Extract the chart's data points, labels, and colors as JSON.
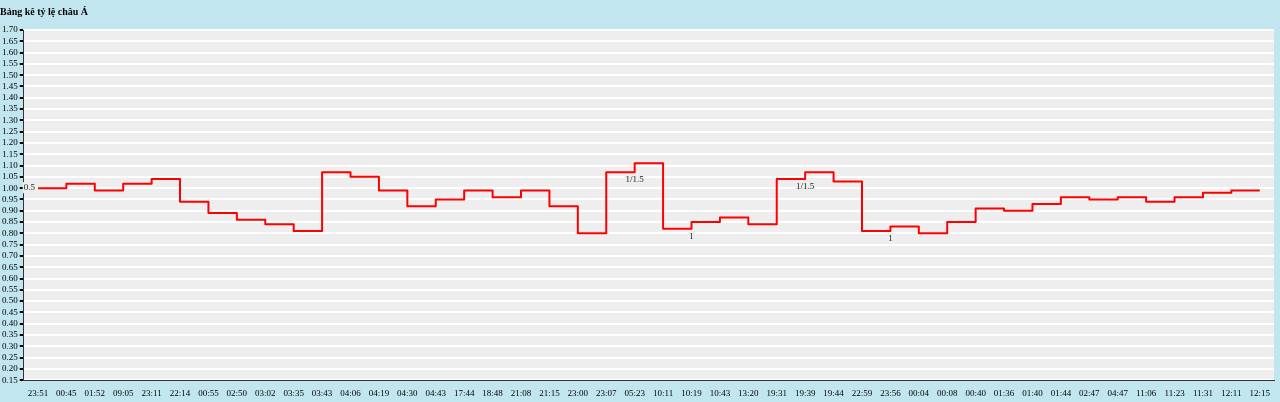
{
  "chart_data": {
    "type": "step",
    "title": "Bảng kê tỷ lệ châu Á",
    "categories": [
      "23:51",
      "00:45",
      "01:52",
      "09:05",
      "23:11",
      "22:14",
      "00:55",
      "02:50",
      "03:02",
      "03:35",
      "03:43",
      "04:06",
      "04:19",
      "04:30",
      "04:43",
      "17:44",
      "18:48",
      "21:08",
      "21:15",
      "23:00",
      "23:07",
      "05:23",
      "10:11",
      "10:19",
      "10:43",
      "13:20",
      "19:31",
      "19:39",
      "19:44",
      "22:59",
      "23:56",
      "00:04",
      "00:08",
      "00:40",
      "01:36",
      "01:40",
      "01:44",
      "02:47",
      "04:47",
      "11:06",
      "11:23",
      "11:31",
      "12:11",
      "12:15"
    ],
    "series": [
      {
        "color": "#ff0000",
        "values": [
          1.0,
          1.02,
          0.99,
          1.02,
          1.04,
          0.94,
          0.89,
          0.86,
          0.84,
          0.81,
          1.07,
          1.05,
          0.99,
          0.92,
          0.95,
          0.99,
          0.96,
          0.99,
          0.92,
          0.8,
          1.07,
          1.11,
          0.82,
          0.85,
          0.87,
          0.84,
          1.04,
          1.07,
          1.03,
          0.81,
          0.83,
          0.8,
          0.85,
          0.91,
          0.9,
          0.93,
          0.96,
          0.95,
          0.96,
          0.94,
          0.96,
          0.98,
          0.99,
          0.99
        ]
      }
    ],
    "ylim": [
      0.15,
      1.7
    ],
    "yticks": [
      0.15,
      {
        "value": 0.2,
        "label": "0.20"
      },
      0.25,
      {
        "value": 0.3,
        "label": "0.30"
      },
      0.35,
      {
        "value": 0.4,
        "label": "0.40"
      },
      0.45,
      {
        "value": 0.5,
        "label": "0.50"
      },
      0.55,
      {
        "value": 0.6,
        "label": "0.60"
      },
      0.65,
      {
        "value": 0.7,
        "label": "0.70"
      },
      0.75,
      {
        "value": 0.8,
        "label": "0.80"
      },
      0.85,
      {
        "value": 0.9,
        "label": "0.90"
      },
      0.95,
      {
        "value": 1,
        "label": "1.00"
      },
      1.05,
      {
        "value": 1.1,
        "label": "1.10"
      },
      1.15,
      {
        "value": 1.2,
        "label": "1.20"
      },
      1.25,
      {
        "value": 1.3,
        "label": "1.30"
      },
      1.35,
      {
        "value": 1.4,
        "label": "1.40"
      },
      1.45,
      {
        "value": 1.5,
        "label": "1.50"
      },
      1.55,
      {
        "value": 1.6,
        "label": "1.60"
      },
      1.65,
      {
        "value": 1.7,
        "label": "1.70"
      }
    ],
    "annotations": [
      {
        "text": "0.5",
        "x": "23:51",
        "y": 1.0
      },
      {
        "text": "1/1.5",
        "x": "05:23",
        "y": 1.07
      },
      {
        "text": "1",
        "x": "10:19",
        "y": 0.82
      },
      {
        "text": "1/1.5",
        "x": "19:39",
        "y": 1.04
      },
      {
        "text": "1",
        "x": "23:56",
        "y": 0.81
      }
    ],
    "grid": "y",
    "legend": false,
    "marker": "none",
    "line_style": "solid"
  }
}
